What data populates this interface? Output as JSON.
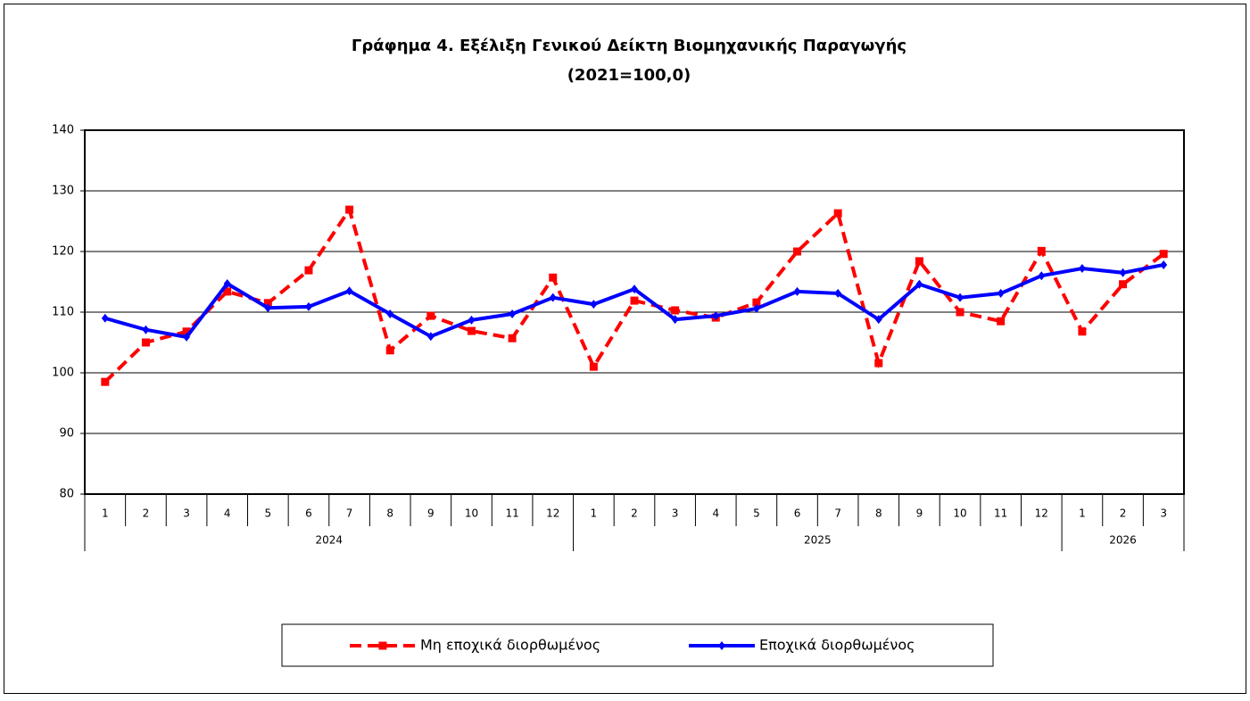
{
  "chart_data": {
    "type": "line",
    "title": "Γράφημα 4. Εξέλιξη Γενικού Δείκτη Βιομηχανικής Παραγωγής",
    "subtitle": "(2021=100,0)",
    "year_groups": [
      {
        "name": "2024",
        "months": [
          "1",
          "2",
          "3",
          "4",
          "5",
          "6",
          "7",
          "8",
          "9",
          "10",
          "11",
          "12"
        ]
      },
      {
        "name": "2025",
        "months": [
          "1",
          "2",
          "3",
          "4",
          "5",
          "6",
          "7",
          "8",
          "9",
          "10",
          "11",
          "12"
        ]
      },
      {
        "name": "2026",
        "months": [
          "1",
          "2",
          "3"
        ]
      }
    ],
    "series": [
      {
        "name": "Μη εποχικά διορθωμένος",
        "color": "#ff0000",
        "dashed": true,
        "marker": "square",
        "values": [
          98.5,
          105.0,
          106.8,
          113.4,
          111.5,
          116.9,
          126.9,
          103.7,
          109.4,
          106.9,
          105.7,
          115.7,
          101.0,
          111.9,
          110.3,
          109.1,
          111.6,
          120.0,
          126.3,
          101.6,
          118.4,
          110.0,
          108.5,
          120.1,
          106.8,
          114.6,
          119.6
        ]
      },
      {
        "name": "Εποχικά διορθωμένος",
        "color": "#0000ff",
        "dashed": false,
        "marker": "diamond",
        "values": [
          109.0,
          107.1,
          105.9,
          114.7,
          110.7,
          110.9,
          113.5,
          109.7,
          106.0,
          108.7,
          109.7,
          112.4,
          111.3,
          113.8,
          108.8,
          109.4,
          110.6,
          113.4,
          113.1,
          108.8,
          114.6,
          112.4,
          113.1,
          116.0,
          117.2,
          116.5,
          117.8
        ]
      }
    ],
    "ylim": [
      80,
      140
    ],
    "yticks": [
      80,
      90,
      100,
      110,
      120,
      130,
      140
    ],
    "grid": true,
    "legend": "bottom"
  }
}
